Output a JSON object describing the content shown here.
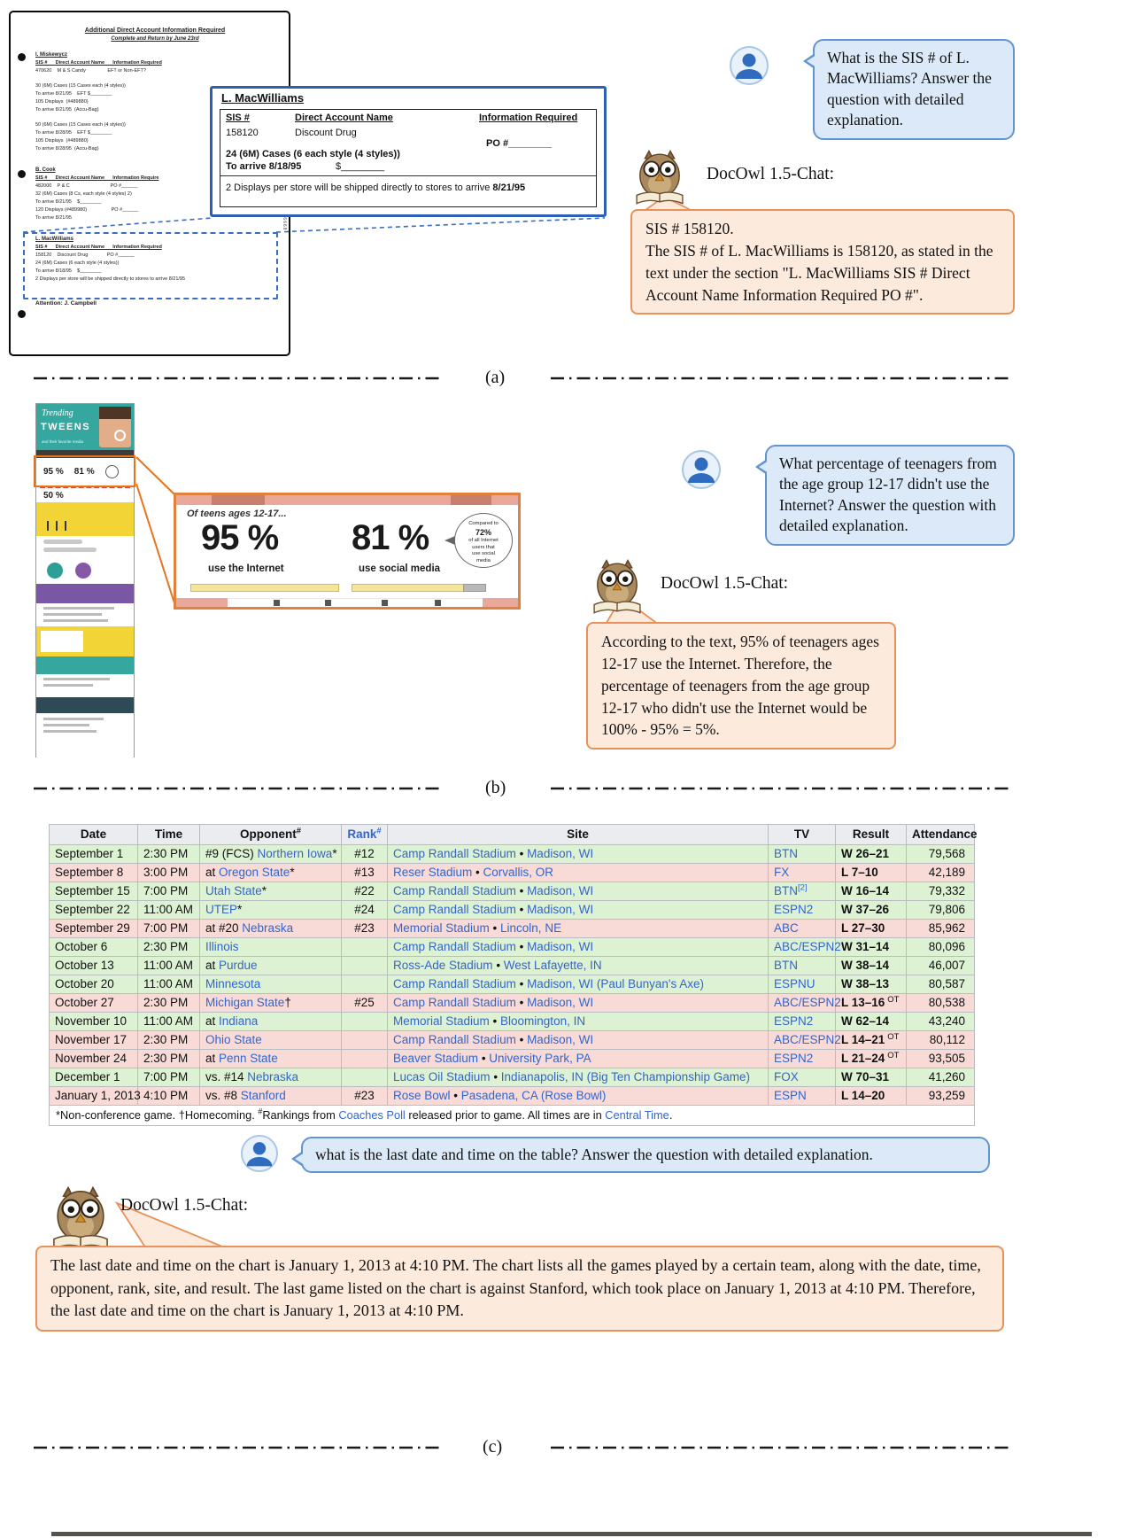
{
  "colors": {
    "bubble_fill": "#dbe9f8",
    "bubble_border": "#6394d2",
    "answer_fill": "#fceadd",
    "answer_border": "#e8915a",
    "link": "#3366cc",
    "win_row": "#ddf1d3",
    "loss_row": "#f8dad7",
    "zoom_a_border": "#2e5fb7",
    "zoom_b_border": "#e0823f"
  },
  "section_a": {
    "label": "(a)",
    "question": "What is the SIS # of L. MacWilliams? Answer the question with detailed explanation.",
    "bot_label": "DocOwl 1.5-Chat:",
    "answer": [
      "SIS # 158120.",
      "The SIS # of L. MacWilliams is 158120, as stated in the text under the section \"L. MacWilliams SIS # Direct Account Name Information Required PO #\"."
    ],
    "document": {
      "side_code": "51665 6668",
      "lines": [
        {
          "t": "Additional Direct Account Information Required",
          "c": "dhead"
        },
        {
          "t": "Complete and Return by June 23rd",
          "c": "dsub"
        },
        {
          "t": "I. Miskewycz",
          "c": "dsec"
        },
        {
          "t": "SIS #      Direct Account Name      Information Required",
          "c": "dcols"
        },
        {
          "t": "470620    M & S Candy                EFT or Non-EFT?",
          "c": "dline"
        },
        {
          "t": "",
          "c": "dgap"
        },
        {
          "t": "30 (6M) Cases (15 Cases each (4 styles))",
          "c": "dline"
        },
        {
          "t": "To arrive 8/21/95    EFT $________",
          "c": "dline"
        },
        {
          "t": "105 Displays  (#489880)",
          "c": "dline"
        },
        {
          "t": "To arrive 8/21/95  (Accu-Bag)",
          "c": "dline"
        },
        {
          "t": "",
          "c": "dgap"
        },
        {
          "t": "50 (6M) Cases (15 Cases each (4 styles))",
          "c": "dline"
        },
        {
          "t": "To arrive 8/28/95    EFT $________",
          "c": "dline"
        },
        {
          "t": "105 Displays  (#489880)",
          "c": "dline"
        },
        {
          "t": "To arrive 8/28/95  (Accu-Bag)",
          "c": "dline"
        },
        {
          "t": "",
          "c": "dgap"
        },
        {
          "t": "B. Cook",
          "c": "dsec"
        },
        {
          "t": "SIS #      Direct Account Name      Information Require",
          "c": "dcols"
        },
        {
          "t": "482000    P & C                              PO #______",
          "c": "dline"
        },
        {
          "t": "32 (6M) Cases (8 Cs, each style (4 styles) 2)",
          "c": "dline"
        },
        {
          "t": "To arrive 8/21/95    $________",
          "c": "dline"
        },
        {
          "t": "120 Displays (#489980)                  PO #______",
          "c": "dline"
        },
        {
          "t": "To arrive 8/21/95",
          "c": "dline"
        },
        {
          "t": "",
          "c": "dgap"
        },
        {
          "t": "L. MacWilliams",
          "c": "dsec"
        },
        {
          "t": "SIS #      Direct Account Name      Information Required",
          "c": "dcols"
        },
        {
          "t": "158120    Discount Drug              PO #______",
          "c": "dline"
        },
        {
          "t": "24 (6M) Cases (6 each style (4 styles))",
          "c": "dline"
        },
        {
          "t": "To arrive 8/18/95    $________",
          "c": "dline"
        },
        {
          "t": "2 Displays per store will be shipped directly to stores to arrive 8/21/95",
          "c": "dline"
        },
        {
          "t": "",
          "c": "dgap"
        },
        {
          "t": "Attention:  J. Campbell",
          "c": "dattn"
        }
      ]
    },
    "zoom": {
      "title": "L. MacWilliams",
      "col_sis": "SIS #",
      "col_name": "Direct Account Name",
      "col_info": "Information Required",
      "sis_value": "158120",
      "name_value": "Discount Drug",
      "po_label": "PO #________",
      "cases_line": "24 (6M) Cases (6 each style (4 styles))",
      "arrive_line": "To arrive 8/18/95",
      "amount_blank": "$________",
      "displays_prefix": "2 Displays per store will be shipped directly to stores to arrive ",
      "displays_bold": "8/21/95"
    }
  },
  "section_b": {
    "label": "(b)",
    "question": "What percentage of teenagers from the age group 12-17 didn't use the Internet? Answer the question with detailed explanation.",
    "bot_label": "DocOwl 1.5-Chat:",
    "answer": "According to the text, 95% of teenagers ages 12-17 use the Internet. Therefore, the percentage of teenagers from the age group 12-17 who didn't use the Internet would be 100% - 95% = 5%.",
    "infographic": {
      "title_script": "Trending",
      "title_main": "TWEENS",
      "subtitle": "and their favorite media",
      "stat1": "95 %",
      "stat2": "81 %",
      "stat3": "50 %"
    },
    "zoom": {
      "heading": "Of teens ages 12-17...",
      "stat1": "95 %",
      "stat1_caption": "use the Internet",
      "stat2": "81 %",
      "stat2_caption": "use social media",
      "bubble_lines": [
        "Compared to",
        "72%",
        "of all Internet",
        "users that",
        "use social",
        "media"
      ]
    }
  },
  "section_c": {
    "label": "(c)",
    "question": "what is the last date and time on the table? Answer the question with detailed explanation.",
    "bot_label": "DocOwl 1.5-Chat:",
    "answer": "The last date and time on the chart is January 1, 2013 at 4:10 PM. The chart lists all the games played by a certain team, along with the date, time, opponent, rank, site, and result. The last game listed on the chart is against Stanford, which took place on January 1, 2013 at 4:10 PM. Therefore, the last date and time on the chart is January 1, 2013 at 4:10 PM.",
    "table": {
      "headers": [
        {
          "label": "Date"
        },
        {
          "label": "Time"
        },
        {
          "label": "Opponent",
          "sup": "#"
        },
        {
          "label": "Rank",
          "sup": "#",
          "link": true
        },
        {
          "label": "Site"
        },
        {
          "label": "TV"
        },
        {
          "label": "Result"
        },
        {
          "label": "Attendance"
        }
      ],
      "rows": [
        {
          "date": "September 1",
          "time": "2:30 PM",
          "opponent": [
            {
              "t": "#9 (FCS) "
            },
            {
              "t": "Northern Iowa",
              "link": true
            },
            {
              "t": "*"
            }
          ],
          "rank": "#12",
          "site": [
            {
              "t": "Camp Randall Stadium",
              "link": true
            },
            {
              "t": " • "
            },
            {
              "t": "Madison, WI",
              "link": true
            }
          ],
          "tv": [
            {
              "t": "BTN",
              "link": true
            }
          ],
          "result": "W 26–21",
          "ot": false,
          "attendance": "79,568",
          "win": true
        },
        {
          "date": "September 8",
          "time": "3:00 PM",
          "opponent": [
            {
              "t": "at "
            },
            {
              "t": "Oregon State",
              "link": true
            },
            {
              "t": "*"
            }
          ],
          "rank": "#13",
          "site": [
            {
              "t": "Reser Stadium",
              "link": true
            },
            {
              "t": " • "
            },
            {
              "t": "Corvallis, OR",
              "link": true
            }
          ],
          "tv": [
            {
              "t": "FX",
              "link": true
            }
          ],
          "result": "L 7–10",
          "ot": false,
          "attendance": "42,189",
          "win": false
        },
        {
          "date": "September 15",
          "time": "7:00 PM",
          "opponent": [
            {
              "t": "Utah State",
              "link": true
            },
            {
              "t": "*"
            }
          ],
          "rank": "#22",
          "site": [
            {
              "t": "Camp Randall Stadium",
              "link": true
            },
            {
              "t": " • "
            },
            {
              "t": "Madison, WI",
              "link": true
            }
          ],
          "tv": [
            {
              "t": "BTN",
              "link": true
            },
            {
              "t": "[2]",
              "link": true,
              "sup": true
            }
          ],
          "result": "W 16–14",
          "ot": false,
          "attendance": "79,332",
          "win": true
        },
        {
          "date": "September 22",
          "time": "11:00 AM",
          "opponent": [
            {
              "t": "UTEP",
              "link": true
            },
            {
              "t": "*"
            }
          ],
          "rank": "#24",
          "site": [
            {
              "t": "Camp Randall Stadium",
              "link": true
            },
            {
              "t": " • "
            },
            {
              "t": "Madison, WI",
              "link": true
            }
          ],
          "tv": [
            {
              "t": "ESPN2",
              "link": true
            }
          ],
          "result": "W 37–26",
          "ot": false,
          "attendance": "79,806",
          "win": true
        },
        {
          "date": "September 29",
          "time": "7:00 PM",
          "opponent": [
            {
              "t": "at #20 "
            },
            {
              "t": "Nebraska",
              "link": true
            }
          ],
          "rank": "#23",
          "site": [
            {
              "t": "Memorial Stadium",
              "link": true
            },
            {
              "t": " • "
            },
            {
              "t": "Lincoln, NE",
              "link": true
            }
          ],
          "tv": [
            {
              "t": "ABC",
              "link": true
            }
          ],
          "result": "L 27–30",
          "ot": false,
          "attendance": "85,962",
          "win": false
        },
        {
          "date": "October 6",
          "time": "2:30 PM",
          "opponent": [
            {
              "t": "Illinois",
              "link": true
            }
          ],
          "rank": "",
          "site": [
            {
              "t": "Camp Randall Stadium",
              "link": true
            },
            {
              "t": " • "
            },
            {
              "t": "Madison, WI",
              "link": true
            }
          ],
          "tv": [
            {
              "t": "ABC/ESPN2",
              "link": true
            }
          ],
          "result": "W 31–14",
          "ot": false,
          "attendance": "80,096",
          "win": true
        },
        {
          "date": "October 13",
          "time": "11:00 AM",
          "opponent": [
            {
              "t": "at "
            },
            {
              "t": "Purdue",
              "link": true
            }
          ],
          "rank": "",
          "site": [
            {
              "t": "Ross-Ade Stadium",
              "link": true
            },
            {
              "t": " • "
            },
            {
              "t": "West Lafayette, IN",
              "link": true
            }
          ],
          "tv": [
            {
              "t": "BTN",
              "link": true
            }
          ],
          "result": "W 38–14",
          "ot": false,
          "attendance": "46,007",
          "win": true
        },
        {
          "date": "October 20",
          "time": "11:00 AM",
          "opponent": [
            {
              "t": "Minnesota",
              "link": true
            }
          ],
          "rank": "",
          "site": [
            {
              "t": "Camp Randall Stadium",
              "link": true
            },
            {
              "t": " • "
            },
            {
              "t": "Madison, WI",
              "link": true
            },
            {
              "t": " "
            },
            {
              "t": "(Paul Bunyan's Axe)",
              "link": true
            }
          ],
          "tv": [
            {
              "t": "ESPNU",
              "link": true
            }
          ],
          "result": "W 38–13",
          "ot": false,
          "attendance": "80,587",
          "win": true
        },
        {
          "date": "October 27",
          "time": "2:30 PM",
          "opponent": [
            {
              "t": "Michigan State",
              "link": true
            },
            {
              "t": "†"
            }
          ],
          "rank": "#25",
          "site": [
            {
              "t": "Camp Randall Stadium",
              "link": true
            },
            {
              "t": " • "
            },
            {
              "t": "Madison, WI",
              "link": true
            }
          ],
          "tv": [
            {
              "t": "ABC/ESPN2",
              "link": true
            }
          ],
          "result": "L 13–16",
          "ot": true,
          "attendance": "80,538",
          "win": false
        },
        {
          "date": "November 10",
          "time": "11:00 AM",
          "opponent": [
            {
              "t": "at "
            },
            {
              "t": "Indiana",
              "link": true
            }
          ],
          "rank": "",
          "site": [
            {
              "t": "Memorial Stadium",
              "link": true
            },
            {
              "t": " • "
            },
            {
              "t": "Bloomington, IN",
              "link": true
            }
          ],
          "tv": [
            {
              "t": "ESPN2",
              "link": true
            }
          ],
          "result": "W 62–14",
          "ot": false,
          "attendance": "43,240",
          "win": true
        },
        {
          "date": "November 17",
          "time": "2:30 PM",
          "opponent": [
            {
              "t": "Ohio State",
              "link": true
            }
          ],
          "rank": "",
          "site": [
            {
              "t": "Camp Randall Stadium",
              "link": true
            },
            {
              "t": " • "
            },
            {
              "t": "Madison, WI",
              "link": true
            }
          ],
          "tv": [
            {
              "t": "ABC/ESPN2",
              "link": true
            }
          ],
          "result": "L 14–21",
          "ot": true,
          "attendance": "80,112",
          "win": false
        },
        {
          "date": "November 24",
          "time": "2:30 PM",
          "opponent": [
            {
              "t": "at "
            },
            {
              "t": "Penn State",
              "link": true
            }
          ],
          "rank": "",
          "site": [
            {
              "t": "Beaver Stadium",
              "link": true
            },
            {
              "t": " • "
            },
            {
              "t": "University Park, PA",
              "link": true
            }
          ],
          "tv": [
            {
              "t": "ESPN2",
              "link": true
            }
          ],
          "result": "L 21–24",
          "ot": true,
          "attendance": "93,505",
          "win": false
        },
        {
          "date": "December 1",
          "time": "7:00 PM",
          "opponent": [
            {
              "t": "vs. #14 "
            },
            {
              "t": "Nebraska",
              "link": true
            }
          ],
          "rank": "",
          "site": [
            {
              "t": "Lucas Oil Stadium",
              "link": true
            },
            {
              "t": " • "
            },
            {
              "t": "Indianapolis, IN",
              "link": true
            },
            {
              "t": " "
            },
            {
              "t": "(Big Ten Championship Game)",
              "link": true
            }
          ],
          "tv": [
            {
              "t": "FOX",
              "link": true
            }
          ],
          "result": "W 70–31",
          "ot": false,
          "attendance": "41,260",
          "win": true
        },
        {
          "date": "January 1, 2013",
          "time": "4:10 PM",
          "opponent": [
            {
              "t": "vs. #8 "
            },
            {
              "t": "Stanford",
              "link": true
            }
          ],
          "rank": "#23",
          "site": [
            {
              "t": "Rose Bowl",
              "link": true
            },
            {
              "t": " • "
            },
            {
              "t": "Pasadena, CA",
              "link": true
            },
            {
              "t": " "
            },
            {
              "t": "(Rose Bowl)",
              "link": true
            }
          ],
          "tv": [
            {
              "t": "ESPN",
              "link": true
            }
          ],
          "result": "L 14–20",
          "ot": false,
          "attendance": "93,259",
          "win": false
        }
      ],
      "footnote": [
        {
          "t": "*Non-conference game. †Homecoming. "
        },
        {
          "t": "#",
          "sup": true
        },
        {
          "t": "Rankings from "
        },
        {
          "t": "Coaches Poll",
          "link": true
        },
        {
          "t": " released prior to game. All times are in "
        },
        {
          "t": "Central Time",
          "link": true
        },
        {
          "t": "."
        }
      ]
    }
  }
}
